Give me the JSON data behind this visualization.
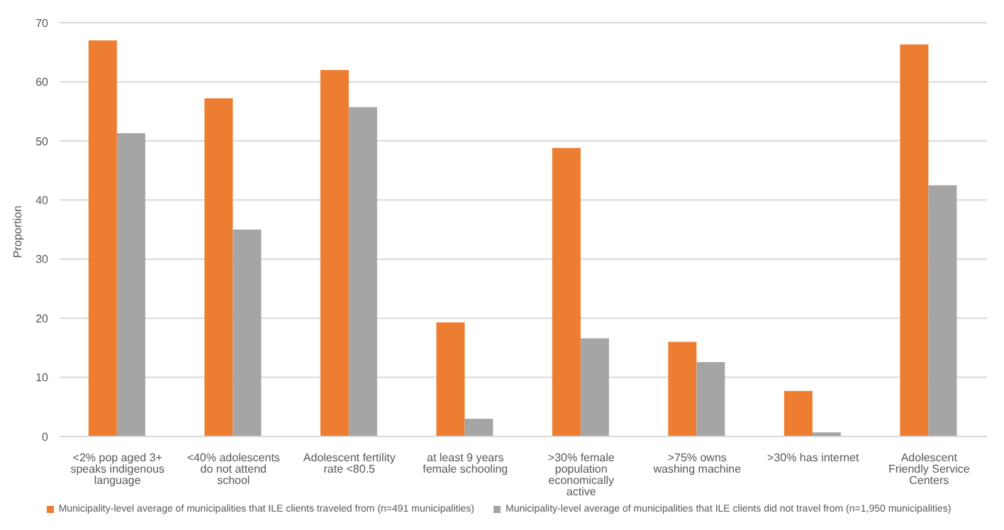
{
  "chart_data": {
    "type": "bar",
    "ylabel": "Proportion",
    "categories": [
      "<2% pop aged 3+ speaks indigenous language",
      "<40% adolescents do not attend school",
      "Adolescent fertility rate <80.5",
      "at least 9 years female schooling",
      ">30% female population economically active",
      ">75% owns washing machine",
      ">30% has internet",
      "Adolescent Friendly Service Centers"
    ],
    "series": [
      {
        "name": "Municipality-level average of municipalities that ILE clients traveled from (n=491 municipalities)",
        "color": "#ed7d31",
        "values": [
          67,
          57.2,
          62,
          19.3,
          48.8,
          16,
          7.7,
          66.3
        ]
      },
      {
        "name": "Municipality-level average of municipalities that ILE clients did not travel from (n=1,950 municipalities)",
        "color": "#a5a5a5",
        "values": [
          51.3,
          35,
          55.7,
          3,
          16.6,
          12.6,
          0.7,
          42.5
        ]
      }
    ],
    "ylim": [
      0,
      70
    ],
    "yticks": [
      0,
      10,
      20,
      30,
      40,
      50,
      60,
      70
    ],
    "grid": "y",
    "legend": "bottom"
  }
}
